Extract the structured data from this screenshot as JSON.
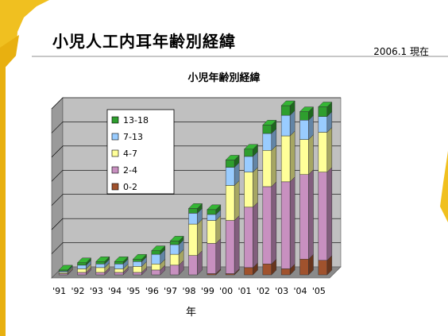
{
  "header": {
    "title": "小児人工内耳年齢別経緯",
    "date_note": "2006.1  現在"
  },
  "colors": {
    "accent_yellow": "#f0c020",
    "plot_back": "#c0c0c0",
    "plot_floor": "#8a8a8a"
  },
  "chart_data": {
    "type": "bar",
    "stacked": true,
    "three_d": true,
    "title": "小児年齢別経緯",
    "xlabel": "年",
    "ylabel": "",
    "ylim": [
      0,
      140
    ],
    "grid": true,
    "legend_position": "top-left",
    "categories": [
      "'91",
      "'92",
      "'93",
      "'94",
      "'95",
      "'96",
      "'97",
      "'98",
      "'99",
      "'00",
      "'01",
      "'02",
      "'03",
      "'04",
      "'05"
    ],
    "series": [
      {
        "name": "0-2",
        "color": "#a0522d",
        "values": [
          0,
          0,
          0,
          0,
          0,
          0,
          0,
          0,
          1,
          1,
          6,
          9,
          5,
          13,
          12
        ]
      },
      {
        "name": "2-4",
        "color": "#c890c0",
        "values": [
          1,
          2,
          2,
          2,
          2,
          4,
          8,
          16,
          25,
          44,
          50,
          64,
          72,
          70,
          73
        ]
      },
      {
        "name": "4-7",
        "color": "#ffff99",
        "values": [
          1,
          3,
          4,
          3,
          5,
          5,
          9,
          26,
          19,
          29,
          29,
          30,
          38,
          29,
          33
        ]
      },
      {
        "name": "7-13",
        "color": "#99ccff",
        "values": [
          1,
          3,
          3,
          4,
          4,
          8,
          8,
          9,
          5,
          15,
          13,
          14,
          17,
          16,
          13
        ]
      },
      {
        "name": "13-18",
        "color": "#2e9e2e",
        "values": [
          1,
          2,
          2,
          2,
          2,
          3,
          3,
          4,
          4,
          6,
          6,
          7,
          8,
          7,
          8
        ]
      }
    ]
  }
}
